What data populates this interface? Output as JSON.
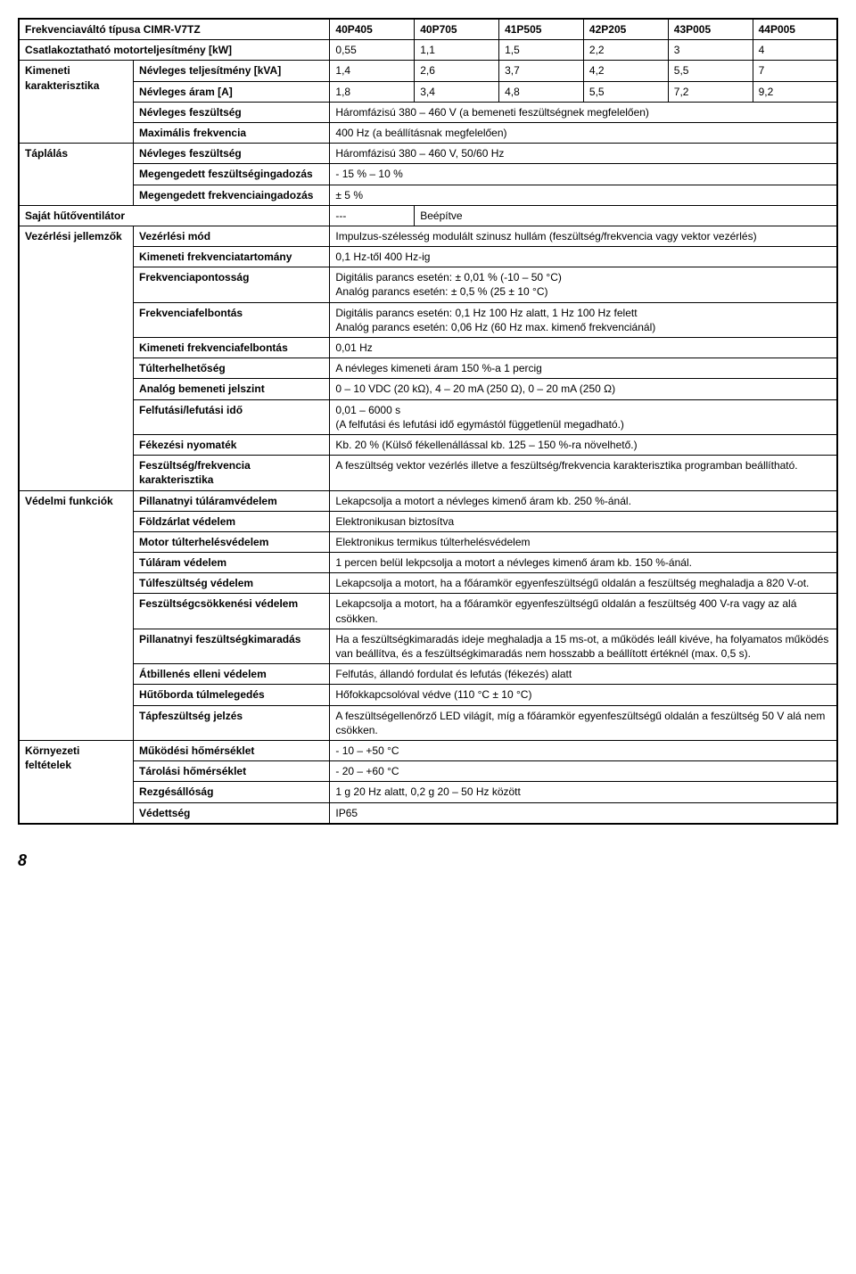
{
  "header": {
    "title": "Frekvenciaváltó típusa CIMR-V7TZ",
    "models": [
      "40P405",
      "40P705",
      "41P505",
      "42P205",
      "43P005",
      "44P005"
    ]
  },
  "motor_power": {
    "label": "Csatlakoztatható motorteljesítmény [kW]",
    "values": [
      "0,55",
      "1,1",
      "1,5",
      "2,2",
      "3",
      "4"
    ]
  },
  "output": {
    "group": "Kimeneti karakterisztika",
    "rows": [
      {
        "label": "Névleges teljesítmény [kVA]",
        "values": [
          "1,4",
          "2,6",
          "3,7",
          "4,2",
          "5,5",
          "7"
        ]
      },
      {
        "label": "Névleges áram [A]",
        "values": [
          "1,8",
          "3,4",
          "4,8",
          "5,5",
          "7,2",
          "9,2"
        ]
      },
      {
        "label": "Névleges feszültség",
        "merged": "Háromfázisú 380 – 460 V (a bemeneti feszültségnek megfelelően)"
      },
      {
        "label": "Maximális frekvencia",
        "merged": "400 Hz (a beállításnak megfelelően)"
      }
    ]
  },
  "supply": {
    "group": "Táplálás",
    "rows": [
      {
        "label": "Névleges feszültség",
        "merged": "Háromfázisú 380 – 460 V, 50/60 Hz"
      },
      {
        "label": "Megengedett feszültségingadozás",
        "merged": "- 15 % – 10 %"
      },
      {
        "label": "Megengedett frekvenciaingadozás",
        "merged": "± 5 %"
      }
    ]
  },
  "fan": {
    "label": "Saját hűtőventilátor",
    "left": "---",
    "right": "Beépítve"
  },
  "control": {
    "group": "Vezérlési jellemzők",
    "rows": [
      {
        "label": "Vezérlési mód",
        "merged": "Impulzus-szélesség modulált szinusz hullám (feszültség/frekvencia vagy vektor vezérlés)"
      },
      {
        "label": "Kimeneti frekvenciatartomány",
        "merged": "0,1 Hz-től 400 Hz-ig"
      },
      {
        "label": "Frekvenciapontosság",
        "merged": "Digitális parancs esetén: ± 0,01 % (-10 – 50 °C)\nAnalóg parancs esetén: ± 0,5 % (25 ± 10 °C)"
      },
      {
        "label": "Frekvenciafelbontás",
        "merged": "Digitális parancs esetén: 0,1 Hz 100 Hz alatt, 1 Hz 100 Hz felett\nAnalóg parancs esetén: 0,06 Hz (60 Hz max. kimenő frekvenciánál)"
      },
      {
        "label": "Kimeneti frekvenciafelbontás",
        "merged": "0,01 Hz"
      },
      {
        "label": "Túlterhelhetőség",
        "merged": "A névleges kimeneti áram 150 %-a 1 percig"
      },
      {
        "label": "Analóg bemeneti jelszint",
        "merged": "0 – 10 VDC (20 kΩ), 4 – 20 mA (250 Ω), 0 – 20 mA (250 Ω)"
      },
      {
        "label": "Felfutási/lefutási idő",
        "merged": "0,01 – 6000 s\n(A felfutási és lefutási idő egymástól függetlenül megadható.)"
      },
      {
        "label": "Fékezési nyomaték",
        "merged": "Kb. 20 % (Külső fékellenállással kb. 125 – 150 %-ra növelhető.)"
      },
      {
        "label": "Feszültség/frekvencia karakterisztika",
        "merged": "A feszültség vektor vezérlés illetve a feszültség/frekvencia karakterisztika programban beállítható."
      }
    ]
  },
  "protection": {
    "group": "Védelmi funkciók",
    "rows": [
      {
        "label": "Pillanatnyi túláramvédelem",
        "merged": "Lekapcsolja a motort a névleges kimenő áram kb. 250 %-ánál."
      },
      {
        "label": "Földzárlat védelem",
        "merged": "Elektronikusan biztosítva"
      },
      {
        "label": "Motor túlterhelésvédelem",
        "merged": "Elektronikus termikus túlterhelésvédelem"
      },
      {
        "label": "Túláram védelem",
        "merged": "1 percen belül lekpcsolja a motort a névleges kimenő áram kb. 150 %-ánál."
      },
      {
        "label": "Túlfeszültség védelem",
        "merged": "Lekapcsolja a motort, ha a főáramkör egyenfeszültségű oldalán a feszültség meghaladja a 820 V-ot."
      },
      {
        "label": "Feszültségcsökkenési védelem",
        "merged": "Lekapcsolja a motort, ha a főáramkör egyenfeszültségű oldalán a feszültség 400 V-ra vagy az alá csökken."
      },
      {
        "label": "Pillanatnyi feszültségkimaradás",
        "merged": "Ha a feszültségkimaradás ideje meghaladja a 15 ms-ot, a működés leáll kivéve, ha folyamatos működés van beállítva, és a feszültségkimaradás nem hosszabb a beállított értéknél (max. 0,5 s)."
      },
      {
        "label": "Átbillenés elleni védelem",
        "merged": "Felfutás, állandó fordulat és lefutás (fékezés) alatt"
      },
      {
        "label": "Hűtőborda túlmelegedés",
        "merged": "Hőfokkapcsolóval védve (110 °C ± 10 °C)"
      },
      {
        "label": "Tápfeszültség jelzés",
        "merged": "A feszültségellenőrző LED világít, míg a főáramkör egyenfeszültségű oldalán a feszültség 50 V alá nem csökken."
      }
    ]
  },
  "environment": {
    "group": "Környezeti feltételek",
    "rows": [
      {
        "label": "Működési hőmérséklet",
        "merged": "- 10 – +50 °C"
      },
      {
        "label": "Tárolási hőmérséklet",
        "merged": "- 20 – +60 °C"
      },
      {
        "label": "Rezgésállóság",
        "merged": "1 g 20 Hz alatt, 0,2 g 20 – 50 Hz között"
      },
      {
        "label": "Védettség",
        "merged": "IP65"
      }
    ]
  },
  "page_number": "8"
}
